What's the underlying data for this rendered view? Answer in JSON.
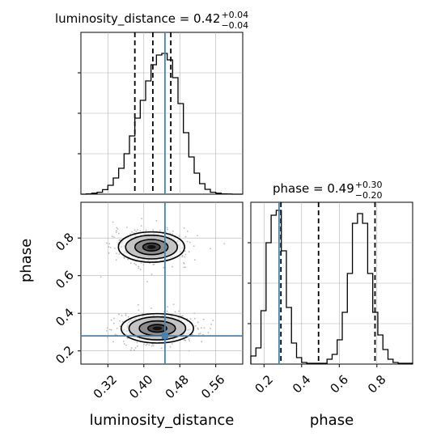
{
  "chart_data": {
    "type": "corner",
    "colors": {
      "truth": "#4682b4",
      "hist": "#000000",
      "contour_fill": [
        "#f0f0f0",
        "#c8c8c8",
        "#8a8a8a",
        "#3a3a3a",
        "#000000"
      ],
      "grid": "#b0b0b0"
    },
    "parameters": [
      {
        "name": "luminosity_distance",
        "label": "luminosity_distance",
        "title": {
          "text": "luminosity_distance = 0.42",
          "sup": "+0.04",
          "sub": "−0.04"
        },
        "range": [
          0.26,
          0.62
        ],
        "ticks": [
          "0.32",
          "0.40",
          "0.48",
          "0.56"
        ],
        "tick_values": [
          0.32,
          0.4,
          0.48,
          0.56
        ],
        "truth": 0.447,
        "quantiles": [
          0.38,
          0.42,
          0.46
        ],
        "hist_bins": [
          0.26,
          0.272,
          0.284,
          0.296,
          0.308,
          0.32,
          0.332,
          0.344,
          0.356,
          0.368,
          0.38,
          0.392,
          0.404,
          0.416,
          0.428,
          0.44,
          0.452,
          0.464,
          0.476,
          0.488,
          0.5,
          0.512,
          0.524,
          0.536,
          0.548,
          0.56,
          0.572,
          0.584,
          0.596,
          0.608,
          0.62
        ],
        "hist_counts": [
          0,
          2,
          6,
          12,
          28,
          55,
          100,
          160,
          250,
          360,
          470,
          580,
          700,
          800,
          860,
          870,
          830,
          720,
          560,
          380,
          230,
          130,
          65,
          30,
          12,
          6,
          2,
          1,
          0,
          0
        ],
        "hist_ymax": 1000
      },
      {
        "name": "phase",
        "label": "phase",
        "title": {
          "text": "phase = 0.49",
          "sup": "+0.30",
          "sub": "−0.20"
        },
        "range": [
          0.13,
          0.99
        ],
        "ticks": [
          "0.2",
          "0.4",
          "0.6",
          "0.8"
        ],
        "tick_values": [
          0.2,
          0.4,
          0.6,
          0.8
        ],
        "truth": 0.28,
        "quantiles": [
          0.29,
          0.49,
          0.79
        ],
        "hist_bins": [
          0.13,
          0.157,
          0.184,
          0.211,
          0.238,
          0.265,
          0.292,
          0.319,
          0.346,
          0.373,
          0.4,
          0.427,
          0.454,
          0.481,
          0.508,
          0.535,
          0.562,
          0.589,
          0.616,
          0.643,
          0.67,
          0.697,
          0.724,
          0.751,
          0.778,
          0.805,
          0.832,
          0.859,
          0.886,
          0.913,
          0.94,
          0.967,
          0.99
        ],
        "hist_counts": [
          50,
          100,
          330,
          750,
          920,
          950,
          700,
          350,
          130,
          40,
          10,
          5,
          5,
          5,
          5,
          30,
          60,
          150,
          320,
          560,
          870,
          930,
          870,
          560,
          320,
          180,
          90,
          30,
          10,
          5,
          5,
          5
        ],
        "hist_ymax": 1000
      }
    ],
    "scatter_2d": {
      "x": "luminosity_distance",
      "y": "phase",
      "modes": [
        {
          "cx": 0.417,
          "cy": 0.752,
          "sx": 0.032,
          "sy": 0.035
        },
        {
          "cx": 0.43,
          "cy": 0.32,
          "sx": 0.035,
          "sy": 0.034
        }
      ],
      "truth_point": [
        0.447,
        0.28
      ]
    }
  }
}
